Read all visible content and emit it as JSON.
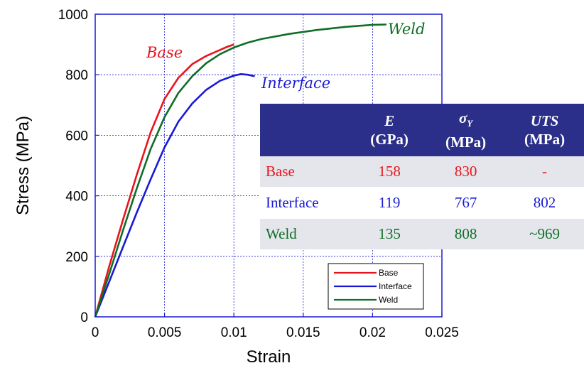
{
  "chart_data": {
    "type": "line",
    "xlabel": "Strain",
    "ylabel": "Stress (MPa)",
    "xlim": [
      0,
      0.025
    ],
    "ylim": [
      0,
      1000
    ],
    "xticks": [
      "0",
      "0.005",
      "0.01",
      "0.015",
      "0.02",
      "0.025"
    ],
    "yticks": [
      "0",
      "200",
      "400",
      "600",
      "800",
      "1000"
    ],
    "grid": true,
    "legend_position": "bottom-right",
    "series": [
      {
        "name": "Base",
        "color": "#e8141c",
        "x": [
          0,
          0.001,
          0.002,
          0.003,
          0.004,
          0.005,
          0.006,
          0.007,
          0.008,
          0.009,
          0.0095,
          0.01
        ],
        "y": [
          0,
          165,
          320,
          470,
          610,
          720,
          790,
          835,
          862,
          882,
          892,
          900
        ]
      },
      {
        "name": "Interface",
        "color": "#1a1ad4",
        "x": [
          0,
          0.001,
          0.002,
          0.003,
          0.004,
          0.005,
          0.006,
          0.007,
          0.008,
          0.009,
          0.01,
          0.0105,
          0.011,
          0.0115
        ],
        "y": [
          0,
          115,
          230,
          345,
          455,
          560,
          645,
          705,
          750,
          780,
          797,
          802,
          800,
          795
        ]
      },
      {
        "name": "Weld",
        "color": "#0f6e26",
        "x": [
          0,
          0.001,
          0.002,
          0.003,
          0.004,
          0.005,
          0.006,
          0.007,
          0.008,
          0.009,
          0.01,
          0.011,
          0.012,
          0.014,
          0.016,
          0.018,
          0.02,
          0.021
        ],
        "y": [
          0,
          140,
          285,
          425,
          555,
          660,
          740,
          795,
          838,
          868,
          890,
          906,
          918,
          935,
          948,
          958,
          965,
          966
        ]
      }
    ],
    "annotations": [
      {
        "text": "Base",
        "series": "Base"
      },
      {
        "text": "Interface",
        "series": "Interface"
      },
      {
        "text": "Weld",
        "series": "Weld"
      }
    ]
  },
  "table": {
    "headers": [
      {
        "sym": "E",
        "unit": "(GPa)"
      },
      {
        "sym": "σY",
        "unit": "(MPa)"
      },
      {
        "sym": "UTS",
        "unit": "(MPa)"
      }
    ],
    "rows": [
      {
        "name": "Base",
        "E": "158",
        "sy": "830",
        "uts": "-",
        "color": "#e8141c"
      },
      {
        "name": "Interface",
        "E": "119",
        "sy": "767",
        "uts": "802",
        "color": "#1a1ad4"
      },
      {
        "name": "Weld",
        "E": "135",
        "sy": "808",
        "uts": "~969",
        "color": "#0f6e26"
      }
    ]
  }
}
